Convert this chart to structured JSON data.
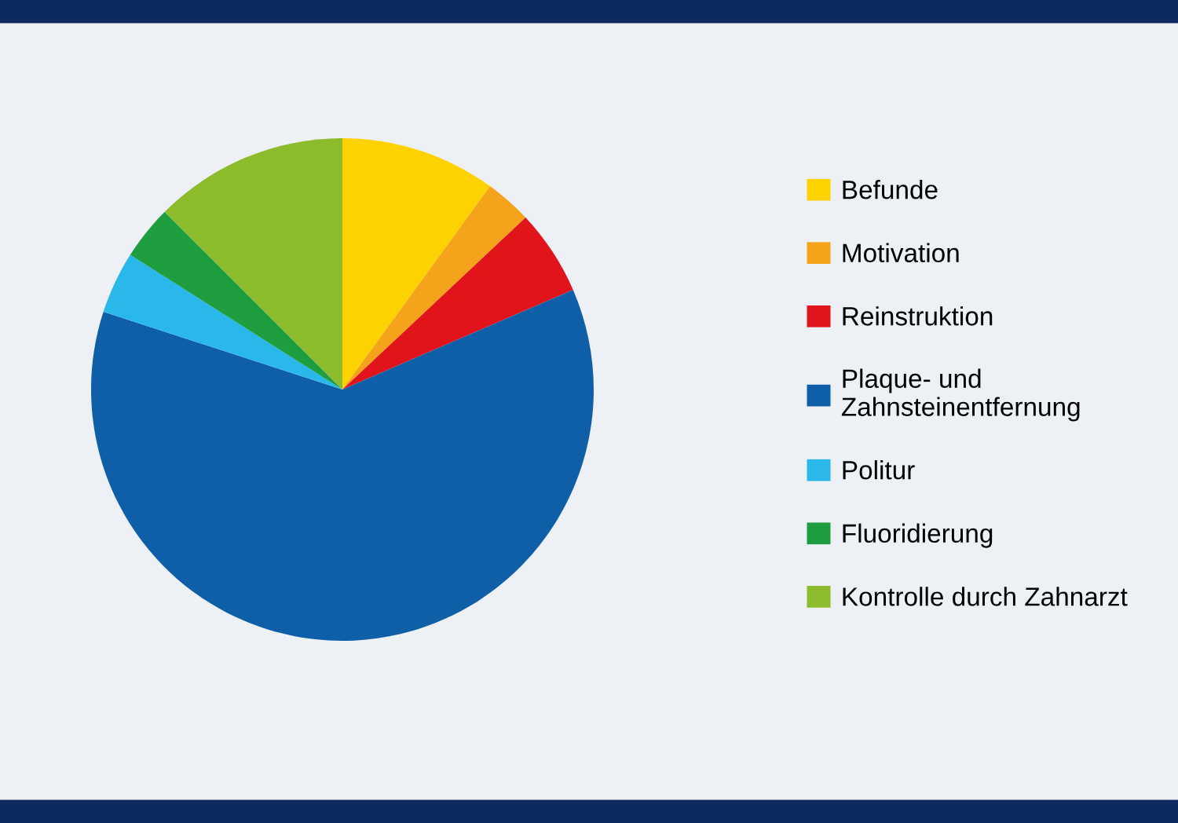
{
  "chart_data": {
    "type": "pie",
    "categories": [
      "Befunde",
      "Motivation",
      "Reinstruktion",
      "Plaque- und\nZahnsteinentfernung",
      "Politur",
      "Fluoridierung",
      "Kontrolle durch Zahnarzt"
    ],
    "values": [
      10,
      3,
      5.5,
      61.5,
      4,
      3.5,
      12.5
    ],
    "colors": [
      "#fed100",
      "#f5a31a",
      "#e2141b",
      "#0f5ea8",
      "#2ab8ea",
      "#1e9e3e",
      "#8cbc2c"
    ],
    "legend": "right"
  }
}
